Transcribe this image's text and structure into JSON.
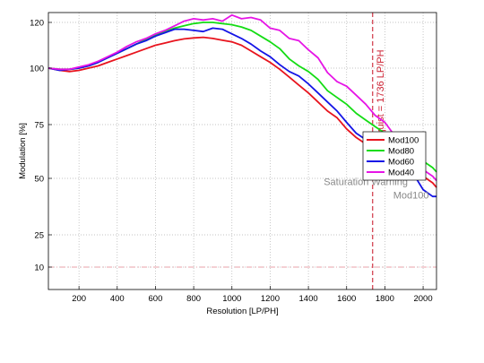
{
  "chart_data": {
    "type": "line",
    "xlabel": "Resolution [LP/PH]",
    "ylabel": "Modulation [%]",
    "xlim": [
      40,
      2070
    ],
    "ylim": [
      0,
      124
    ],
    "x_ticks": [
      200,
      400,
      600,
      800,
      1000,
      1200,
      1400,
      1600,
      1800,
      2000
    ],
    "x_tick_labels": [
      "200",
      "400",
      "600",
      "800",
      "1000",
      "1200",
      "1400",
      "1600",
      "1800",
      "2000"
    ],
    "y_ticks": [
      10,
      25,
      50,
      75,
      100,
      120
    ],
    "y_tick_labels": [
      "10",
      "25",
      "50",
      "75",
      "100",
      "120"
    ],
    "grid": true,
    "legend_position": "right",
    "series": [
      {
        "name": "Mod100",
        "color": "#e8141e",
        "x": [
          40,
          100,
          150,
          200,
          250,
          300,
          350,
          400,
          450,
          500,
          550,
          600,
          650,
          700,
          750,
          800,
          850,
          900,
          950,
          1000,
          1050,
          1100,
          1150,
          1200,
          1250,
          1300,
          1350,
          1400,
          1450,
          1500,
          1550,
          1600,
          1650,
          1700,
          1750,
          1800,
          1850,
          1900,
          1950,
          2000,
          2050,
          2070
        ],
        "y": [
          100,
          99,
          98.5,
          99,
          100,
          101,
          102.5,
          104,
          105.5,
          107,
          108.5,
          110,
          111,
          112,
          112.8,
          113.2,
          113.5,
          113,
          112.2,
          111.5,
          110,
          107.5,
          105,
          102.5,
          99.5,
          96,
          92.5,
          89,
          85,
          81,
          78,
          73,
          69,
          66,
          64,
          62,
          59,
          56,
          53,
          51,
          48,
          46
        ]
      },
      {
        "name": "Mod80",
        "color": "#14dc14",
        "x": [
          40,
          100,
          150,
          200,
          250,
          300,
          350,
          400,
          450,
          500,
          550,
          600,
          650,
          700,
          750,
          800,
          850,
          900,
          950,
          1000,
          1050,
          1100,
          1150,
          1200,
          1250,
          1300,
          1350,
          1400,
          1450,
          1500,
          1550,
          1600,
          1650,
          1700,
          1750,
          1800,
          1850,
          1900,
          1950,
          2000,
          2050,
          2070
        ],
        "y": [
          100,
          99.5,
          99.5,
          100,
          101,
          102.5,
          104.5,
          106.5,
          108.5,
          110.5,
          112.5,
          114.5,
          116,
          117.5,
          118.5,
          119.5,
          120,
          120,
          119.5,
          119,
          118,
          116.5,
          114,
          111.5,
          108.5,
          104,
          101,
          98.5,
          95,
          90,
          87,
          84,
          80,
          77,
          74,
          71,
          68,
          64,
          61,
          58,
          55,
          53
        ]
      },
      {
        "name": "Mod60",
        "color": "#1414e6",
        "x": [
          40,
          100,
          150,
          200,
          250,
          300,
          350,
          400,
          450,
          500,
          550,
          600,
          650,
          700,
          750,
          800,
          850,
          900,
          950,
          1000,
          1050,
          1100,
          1150,
          1200,
          1250,
          1300,
          1350,
          1400,
          1450,
          1500,
          1550,
          1600,
          1650,
          1700,
          1750,
          1800,
          1850,
          1900,
          1950,
          2000,
          2050,
          2070
        ],
        "y": [
          100,
          99,
          99.5,
          100,
          101,
          102.5,
          104.5,
          106.5,
          108.5,
          110.5,
          112,
          114,
          115.5,
          117,
          117,
          116.5,
          116,
          117.5,
          117,
          115,
          113,
          110.5,
          107.5,
          105,
          101.5,
          98.5,
          96.5,
          93,
          89,
          85,
          81,
          76,
          71,
          68,
          66,
          65,
          62,
          57,
          52,
          45,
          42,
          42
        ]
      },
      {
        "name": "Mod40",
        "color": "#e614e6",
        "x": [
          40,
          100,
          150,
          200,
          250,
          300,
          350,
          400,
          450,
          500,
          550,
          600,
          650,
          700,
          750,
          800,
          850,
          900,
          950,
          1000,
          1050,
          1100,
          1150,
          1200,
          1250,
          1300,
          1350,
          1400,
          1450,
          1500,
          1550,
          1600,
          1650,
          1700,
          1750,
          1800,
          1850,
          1900,
          1950,
          2000,
          2050,
          2070
        ],
        "y": [
          100,
          99.5,
          99.5,
          100.5,
          101.5,
          103,
          105,
          107,
          109.5,
          111.5,
          113,
          115,
          116.5,
          118.5,
          120.5,
          121.5,
          121,
          121.5,
          120.5,
          123,
          121.5,
          122,
          121,
          117.5,
          116.5,
          113,
          112,
          108,
          104.5,
          98,
          94,
          92,
          88,
          84,
          79,
          76,
          70,
          64,
          58,
          54,
          51,
          49
        ]
      }
    ],
    "reference_lines": [
      {
        "orientation": "vertical",
        "x": 1736,
        "color": "#cc2233",
        "style": "dashed",
        "label": "Nyquist = 1736 LP/PH"
      },
      {
        "orientation": "horizontal",
        "y": 10,
        "color": "#e8a0a8",
        "style": "dashdot"
      }
    ],
    "annotations": [
      {
        "text": "Saturation Warning",
        "x": 1700,
        "y": 47,
        "color": "#888888"
      },
      {
        "text": "Mod100",
        "x": 2030,
        "y": 41,
        "color": "#888888"
      }
    ]
  }
}
